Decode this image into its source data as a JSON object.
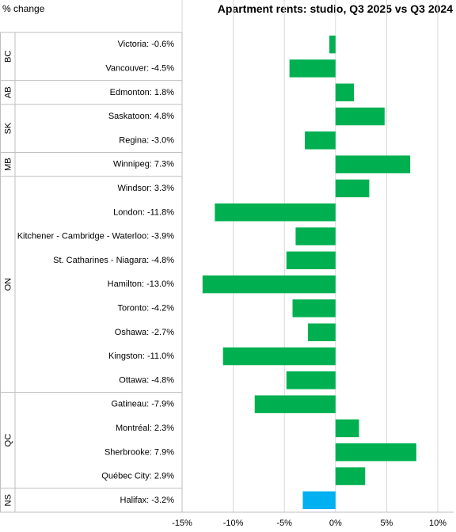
{
  "chart_data": {
    "type": "bar",
    "orientation": "horizontal",
    "title": "Apartment rents: studio, Q3 2025 vs Q3 2024",
    "ylabel": "% change",
    "xlim": [
      -15,
      10
    ],
    "x_ticks": [
      "-15%",
      "-10%",
      "-5%",
      "0%",
      "5%",
      "10%"
    ],
    "x_tick_values": [
      -15,
      -10,
      -5,
      0,
      5,
      10
    ],
    "grid": true,
    "colors": {
      "default": "#00b050",
      "highlight": "#00b0f0"
    },
    "groups": [
      {
        "name": "BC",
        "items": [
          {
            "label": "Victoria: -0.6%",
            "value": -0.6
          },
          {
            "label": "Vancouver: -4.5%",
            "value": -4.5
          }
        ]
      },
      {
        "name": "AB",
        "items": [
          {
            "label": "Edmonton: 1.8%",
            "value": 1.8
          }
        ]
      },
      {
        "name": "SK",
        "items": [
          {
            "label": "Saskatoon: 4.8%",
            "value": 4.8
          },
          {
            "label": "Regina: -3.0%",
            "value": -3.0
          }
        ]
      },
      {
        "name": "MB",
        "items": [
          {
            "label": "Winnipeg: 7.3%",
            "value": 7.3
          }
        ]
      },
      {
        "name": "ON",
        "items": [
          {
            "label": "Windsor: 3.3%",
            "value": 3.3
          },
          {
            "label": "London: -11.8%",
            "value": -11.8
          },
          {
            "label": "Kitchener - Cambridge - Waterloo: -3.9%",
            "value": -3.9
          },
          {
            "label": "St. Catharines - Niagara: -4.8%",
            "value": -4.8
          },
          {
            "label": "Hamilton: -13.0%",
            "value": -13.0
          },
          {
            "label": "Toronto: -4.2%",
            "value": -4.2
          },
          {
            "label": "Oshawa: -2.7%",
            "value": -2.7
          },
          {
            "label": "Kingston: -11.0%",
            "value": -11.0
          },
          {
            "label": "Ottawa: -4.8%",
            "value": -4.8
          }
        ]
      },
      {
        "name": "QC",
        "items": [
          {
            "label": "Gatineau: -7.9%",
            "value": -7.9
          },
          {
            "label": "Montréal: 2.3%",
            "value": 2.3
          },
          {
            "label": "Sherbrooke: 7.9%",
            "value": 7.9
          },
          {
            "label": "Québec City: 2.9%",
            "value": 2.9
          }
        ]
      },
      {
        "name": "NS",
        "items": [
          {
            "label": "Halifax: -3.2%",
            "value": -3.2,
            "highlight": true
          }
        ]
      }
    ]
  }
}
